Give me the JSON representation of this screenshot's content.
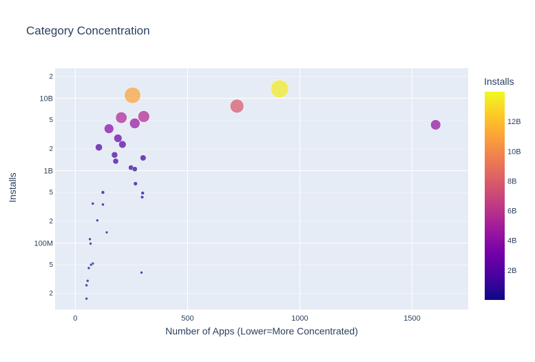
{
  "chart_data": {
    "type": "scatter",
    "title": "Category Concentration",
    "xlabel": "Number of Apps (Lower=More Concentrated)",
    "ylabel": "Installs",
    "x_scale": "linear",
    "y_scale": "log",
    "xlim": [
      -90,
      1750
    ],
    "ylim": [
      12000000,
      26000000000
    ],
    "x_ticks": [
      0,
      500,
      1000,
      1500
    ],
    "y_major_ticks": [
      {
        "value": 100000000,
        "label": "100M"
      },
      {
        "value": 1000000000,
        "label": "1B"
      },
      {
        "value": 10000000000,
        "label": "10B"
      }
    ],
    "y_minor_ticks": [
      {
        "value": 20000000,
        "label": "2"
      },
      {
        "value": 50000000,
        "label": "5"
      },
      {
        "value": 200000000,
        "label": "2"
      },
      {
        "value": 500000000,
        "label": "5"
      },
      {
        "value": 2000000000,
        "label": "2"
      },
      {
        "value": 5000000000,
        "label": "5"
      },
      {
        "value": 20000000000,
        "label": "2"
      }
    ],
    "colorbar": {
      "title": "Installs",
      "range": [
        0,
        14000000000
      ],
      "ticks": [
        {
          "value": 2000000000,
          "label": "2B"
        },
        {
          "value": 4000000000,
          "label": "4B"
        },
        {
          "value": 6000000000,
          "label": "6B"
        },
        {
          "value": 8000000000,
          "label": "8B"
        },
        {
          "value": 10000000000,
          "label": "10B"
        },
        {
          "value": 12000000000,
          "label": "12B"
        }
      ]
    },
    "points": [
      {
        "x": 1605,
        "y": 4300000000
      },
      {
        "x": 910,
        "y": 13500000000
      },
      {
        "x": 720,
        "y": 7800000000
      },
      {
        "x": 255,
        "y": 11000000000
      },
      {
        "x": 305,
        "y": 5600000000
      },
      {
        "x": 205,
        "y": 5400000000
      },
      {
        "x": 265,
        "y": 4500000000
      },
      {
        "x": 150,
        "y": 3800000000
      },
      {
        "x": 190,
        "y": 2800000000
      },
      {
        "x": 210,
        "y": 2300000000
      },
      {
        "x": 105,
        "y": 2100000000
      },
      {
        "x": 175,
        "y": 1650000000
      },
      {
        "x": 180,
        "y": 1350000000
      },
      {
        "x": 302,
        "y": 1500000000
      },
      {
        "x": 248,
        "y": 1100000000
      },
      {
        "x": 265,
        "y": 1050000000
      },
      {
        "x": 268,
        "y": 660000000
      },
      {
        "x": 300,
        "y": 490000000
      },
      {
        "x": 298,
        "y": 430000000
      },
      {
        "x": 123,
        "y": 500000000
      },
      {
        "x": 78,
        "y": 350000000
      },
      {
        "x": 123,
        "y": 340000000
      },
      {
        "x": 98,
        "y": 205000000
      },
      {
        "x": 140,
        "y": 140000000
      },
      {
        "x": 65,
        "y": 113000000
      },
      {
        "x": 68,
        "y": 98000000
      },
      {
        "x": 78,
        "y": 52000000
      },
      {
        "x": 70,
        "y": 50000000
      },
      {
        "x": 60,
        "y": 45000000
      },
      {
        "x": 55,
        "y": 30000000
      },
      {
        "x": 50,
        "y": 26000000
      },
      {
        "x": 50,
        "y": 17000000
      },
      {
        "x": 295,
        "y": 39000000
      }
    ]
  }
}
